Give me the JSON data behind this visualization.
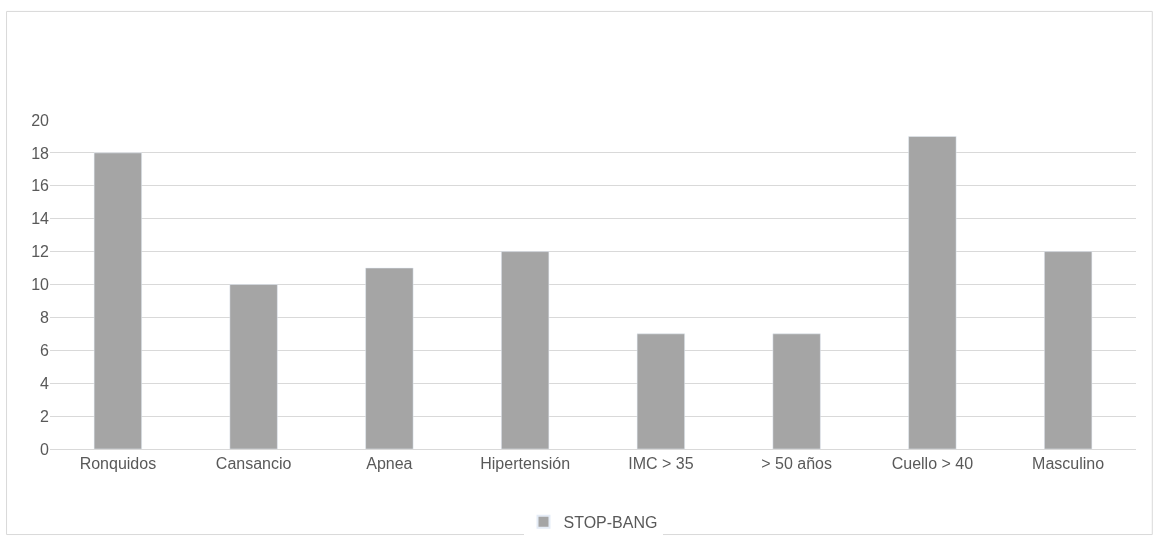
{
  "chart_data": {
    "type": "bar",
    "categories": [
      "Ronquidos",
      "Cansancio",
      "Apnea",
      "Hipertensión",
      "IMC > 35",
      "> 50 años",
      "Cuello > 40",
      "Masculino"
    ],
    "series": [
      {
        "name": "STOP-BANG",
        "color": "#a5a5a5",
        "values": [
          18,
          10,
          11,
          12,
          7,
          7,
          19,
          12
        ]
      }
    ],
    "ylim": [
      0,
      20
    ],
    "yticks": [
      0,
      2,
      4,
      6,
      8,
      10,
      12,
      14,
      16,
      18,
      20
    ],
    "grid": "y",
    "legend": "bottom"
  }
}
